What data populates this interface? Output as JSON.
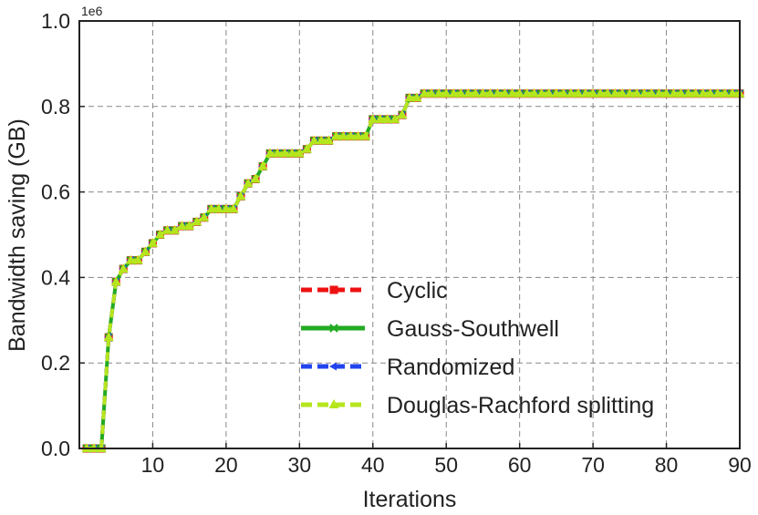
{
  "chart_data": {
    "type": "line",
    "title": "",
    "xlabel": "Iterations",
    "ylabel": "Bandwidth saving (GB)",
    "y_exponent_label": "1e6",
    "xlim": [
      0,
      90
    ],
    "ylim": [
      0.0,
      1.0
    ],
    "xticks": [
      10,
      20,
      30,
      40,
      50,
      60,
      70,
      80,
      90
    ],
    "yticks": [
      0.0,
      0.2,
      0.4,
      0.6,
      0.8,
      1.0
    ],
    "xtick_labels": [
      "10",
      "20",
      "30",
      "40",
      "50",
      "60",
      "70",
      "80",
      "90"
    ],
    "ytick_labels": [
      "0.0",
      "0.2",
      "0.4",
      "0.6",
      "0.8",
      "1.0"
    ],
    "grid": true,
    "legend_position": "center-right",
    "x": [
      1,
      2,
      3,
      4,
      5,
      6,
      7,
      8,
      9,
      10,
      11,
      12,
      13,
      14,
      15,
      16,
      17,
      18,
      19,
      20,
      21,
      22,
      23,
      24,
      25,
      26,
      27,
      28,
      29,
      30,
      31,
      32,
      33,
      34,
      35,
      36,
      37,
      38,
      39,
      40,
      41,
      42,
      43,
      44,
      45,
      46,
      47,
      48,
      49,
      50,
      51,
      52,
      53,
      54,
      55,
      56,
      57,
      58,
      59,
      60,
      61,
      62,
      63,
      64,
      65,
      66,
      67,
      68,
      69,
      70,
      71,
      72,
      73,
      74,
      75,
      76,
      77,
      78,
      79,
      80,
      81,
      82,
      83,
      84,
      85,
      86,
      87,
      88,
      89,
      90
    ],
    "series": [
      {
        "name": "Cyclic",
        "color": "#ee1111",
        "linestyle": "dashed",
        "marker": "square",
        "values": [
          0.0,
          0.0,
          0.0,
          0.26,
          0.39,
          0.42,
          0.44,
          0.44,
          0.46,
          0.48,
          0.5,
          0.51,
          0.51,
          0.52,
          0.52,
          0.53,
          0.54,
          0.56,
          0.56,
          0.56,
          0.56,
          0.59,
          0.62,
          0.63,
          0.66,
          0.69,
          0.69,
          0.69,
          0.69,
          0.69,
          0.7,
          0.72,
          0.72,
          0.72,
          0.73,
          0.73,
          0.73,
          0.73,
          0.73,
          0.77,
          0.77,
          0.77,
          0.77,
          0.78,
          0.82,
          0.82,
          0.83,
          0.83,
          0.83,
          0.83,
          0.83,
          0.83,
          0.83,
          0.83,
          0.83,
          0.83,
          0.83,
          0.83,
          0.83,
          0.83,
          0.83,
          0.83,
          0.83,
          0.83,
          0.83,
          0.83,
          0.83,
          0.83,
          0.83,
          0.83,
          0.83,
          0.83,
          0.83,
          0.83,
          0.83,
          0.83,
          0.83,
          0.83,
          0.83,
          0.83,
          0.83,
          0.83,
          0.83,
          0.83,
          0.83,
          0.83,
          0.83,
          0.83,
          0.83,
          0.83
        ]
      },
      {
        "name": "Gauss-Southwell",
        "color": "#22aa22",
        "linestyle": "solid",
        "marker": "x",
        "values": [
          0.0,
          0.0,
          0.0,
          0.26,
          0.39,
          0.42,
          0.44,
          0.44,
          0.46,
          0.48,
          0.5,
          0.51,
          0.51,
          0.52,
          0.52,
          0.53,
          0.54,
          0.56,
          0.56,
          0.56,
          0.56,
          0.59,
          0.62,
          0.63,
          0.66,
          0.69,
          0.69,
          0.69,
          0.69,
          0.69,
          0.7,
          0.72,
          0.72,
          0.72,
          0.73,
          0.73,
          0.73,
          0.73,
          0.73,
          0.77,
          0.77,
          0.77,
          0.77,
          0.78,
          0.82,
          0.82,
          0.83,
          0.83,
          0.83,
          0.83,
          0.83,
          0.83,
          0.83,
          0.83,
          0.83,
          0.83,
          0.83,
          0.83,
          0.83,
          0.83,
          0.83,
          0.83,
          0.83,
          0.83,
          0.83,
          0.83,
          0.83,
          0.83,
          0.83,
          0.83,
          0.83,
          0.83,
          0.83,
          0.83,
          0.83,
          0.83,
          0.83,
          0.83,
          0.83,
          0.83,
          0.83,
          0.83,
          0.83,
          0.83,
          0.83,
          0.83,
          0.83,
          0.83,
          0.83,
          0.83
        ]
      },
      {
        "name": "Randomized",
        "color": "#2244ee",
        "linestyle": "dashed",
        "marker": "arrow",
        "values": [
          0.0,
          0.0,
          0.0,
          0.26,
          0.39,
          0.42,
          0.44,
          0.44,
          0.46,
          0.48,
          0.5,
          0.51,
          0.51,
          0.52,
          0.52,
          0.53,
          0.54,
          0.56,
          0.56,
          0.56,
          0.56,
          0.59,
          0.62,
          0.63,
          0.66,
          0.69,
          0.69,
          0.69,
          0.69,
          0.69,
          0.7,
          0.72,
          0.72,
          0.72,
          0.73,
          0.73,
          0.73,
          0.73,
          0.73,
          0.77,
          0.77,
          0.77,
          0.77,
          0.78,
          0.82,
          0.82,
          0.83,
          0.83,
          0.83,
          0.83,
          0.83,
          0.83,
          0.83,
          0.83,
          0.83,
          0.83,
          0.83,
          0.83,
          0.83,
          0.83,
          0.83,
          0.83,
          0.83,
          0.83,
          0.83,
          0.83,
          0.83,
          0.83,
          0.83,
          0.83,
          0.83,
          0.83,
          0.83,
          0.83,
          0.83,
          0.83,
          0.83,
          0.83,
          0.83,
          0.83,
          0.83,
          0.83,
          0.83,
          0.83,
          0.83,
          0.83,
          0.83,
          0.83,
          0.83,
          0.83
        ]
      },
      {
        "name": "Douglas-Rachford splitting",
        "color": "#b5e61d",
        "linestyle": "dashed",
        "marker": "triangle",
        "values": [
          0.0,
          0.0,
          0.0,
          0.26,
          0.39,
          0.42,
          0.44,
          0.44,
          0.46,
          0.48,
          0.5,
          0.51,
          0.51,
          0.52,
          0.52,
          0.53,
          0.54,
          0.56,
          0.56,
          0.56,
          0.56,
          0.59,
          0.62,
          0.63,
          0.66,
          0.69,
          0.69,
          0.69,
          0.69,
          0.69,
          0.7,
          0.72,
          0.72,
          0.72,
          0.73,
          0.73,
          0.73,
          0.73,
          0.73,
          0.77,
          0.77,
          0.77,
          0.77,
          0.78,
          0.82,
          0.82,
          0.83,
          0.83,
          0.83,
          0.83,
          0.83,
          0.83,
          0.83,
          0.83,
          0.83,
          0.83,
          0.83,
          0.83,
          0.83,
          0.83,
          0.83,
          0.83,
          0.83,
          0.83,
          0.83,
          0.83,
          0.83,
          0.83,
          0.83,
          0.83,
          0.83,
          0.83,
          0.83,
          0.83,
          0.83,
          0.83,
          0.83,
          0.83,
          0.83,
          0.83,
          0.83,
          0.83,
          0.83,
          0.83,
          0.83,
          0.83,
          0.83,
          0.83,
          0.83,
          0.83
        ]
      }
    ]
  }
}
